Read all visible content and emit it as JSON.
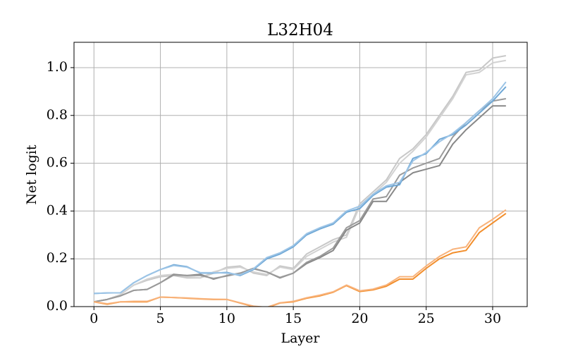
{
  "chart_data": {
    "type": "line",
    "title": "L32H04",
    "x_label": "Layer",
    "y_label": "Net logit",
    "x": [
      0,
      1,
      2,
      3,
      4,
      5,
      6,
      7,
      8,
      9,
      10,
      11,
      12,
      13,
      14,
      15,
      16,
      17,
      18,
      19,
      20,
      21,
      22,
      23,
      24,
      25,
      26,
      27,
      28,
      29,
      30,
      31
    ],
    "xlim": [
      -1.5,
      32.6
    ],
    "ylim": [
      0,
      1.106
    ],
    "xticks": [
      0,
      5,
      10,
      15,
      20,
      25,
      30
    ],
    "yticks": [
      {
        "value": 0,
        "label": "0.0"
      },
      0.2,
      0.4,
      0.6,
      0.8,
      {
        "value": 1,
        "label": "1.0"
      }
    ],
    "grid": true,
    "series": [
      {
        "color": "#c8c8c8",
        "values": [
          0.02,
          0.03,
          0.05,
          0.09,
          0.11,
          0.125,
          0.13,
          0.12,
          0.12,
          0.14,
          0.165,
          0.17,
          0.14,
          0.13,
          0.17,
          0.16,
          0.22,
          0.25,
          0.28,
          0.3,
          0.43,
          0.48,
          0.53,
          0.62,
          0.66,
          0.72,
          0.8,
          0.88,
          0.98,
          0.99,
          1.04,
          1.05
        ]
      },
      {
        "color": "#d2d2d2",
        "values": [
          0.02,
          0.03,
          0.05,
          0.09,
          0.115,
          0.13,
          0.135,
          0.125,
          0.12,
          0.145,
          0.16,
          0.165,
          0.145,
          0.135,
          0.165,
          0.155,
          0.21,
          0.24,
          0.27,
          0.29,
          0.42,
          0.47,
          0.52,
          0.6,
          0.65,
          0.71,
          0.79,
          0.87,
          0.97,
          0.98,
          1.02,
          1.03
        ]
      },
      {
        "color": "#888888",
        "values": [
          0.02,
          0.03,
          0.045,
          0.068,
          0.072,
          0.1,
          0.135,
          0.13,
          0.135,
          0.115,
          0.13,
          0.14,
          0.16,
          0.145,
          0.12,
          0.14,
          0.18,
          0.205,
          0.235,
          0.32,
          0.35,
          0.44,
          0.44,
          0.52,
          0.56,
          0.575,
          0.59,
          0.68,
          0.74,
          0.79,
          0.84,
          0.84
        ]
      },
      {
        "color": "#9a9a9a",
        "values": [
          0.02,
          0.03,
          0.045,
          0.068,
          0.072,
          0.1,
          0.132,
          0.13,
          0.13,
          0.118,
          0.128,
          0.14,
          0.158,
          0.145,
          0.122,
          0.14,
          0.185,
          0.21,
          0.245,
          0.33,
          0.36,
          0.45,
          0.46,
          0.55,
          0.58,
          0.6,
          0.62,
          0.71,
          0.77,
          0.82,
          0.86,
          0.87
        ]
      },
      {
        "color": "#6fa8d6",
        "values": [
          0.055,
          0.057,
          0.058,
          0.1,
          0.13,
          0.155,
          0.175,
          0.167,
          0.14,
          0.14,
          0.143,
          0.13,
          0.155,
          0.2,
          0.22,
          0.25,
          0.3,
          0.325,
          0.345,
          0.395,
          0.41,
          0.465,
          0.5,
          0.51,
          0.62,
          0.64,
          0.7,
          0.72,
          0.76,
          0.81,
          0.86,
          0.92
        ]
      },
      {
        "color": "#9cc4e6",
        "values": [
          0.055,
          0.057,
          0.058,
          0.1,
          0.13,
          0.155,
          0.172,
          0.165,
          0.142,
          0.142,
          0.14,
          0.133,
          0.158,
          0.205,
          0.225,
          0.255,
          0.305,
          0.33,
          0.35,
          0.4,
          0.42,
          0.47,
          0.505,
          0.52,
          0.61,
          0.645,
          0.69,
          0.725,
          0.77,
          0.82,
          0.87,
          0.94
        ]
      },
      {
        "color": "#f28e2b",
        "values": [
          0.02,
          0.01,
          0.02,
          0.02,
          0.02,
          0.04,
          0.038,
          0.035,
          0.032,
          0.03,
          0.03,
          0.015,
          0.0,
          -0.005,
          0.015,
          0.02,
          0.035,
          0.045,
          0.06,
          0.088,
          0.063,
          0.07,
          0.085,
          0.115,
          0.115,
          0.16,
          0.2,
          0.225,
          0.235,
          0.31,
          0.35,
          0.39
        ]
      },
      {
        "color": "#f8b27a",
        "values": [
          0.02,
          0.012,
          0.02,
          0.022,
          0.022,
          0.04,
          0.038,
          0.036,
          0.033,
          0.031,
          0.03,
          0.016,
          0.002,
          -0.003,
          0.016,
          0.022,
          0.037,
          0.048,
          0.062,
          0.09,
          0.066,
          0.073,
          0.09,
          0.125,
          0.125,
          0.17,
          0.21,
          0.24,
          0.25,
          0.33,
          0.365,
          0.405
        ]
      }
    ]
  }
}
